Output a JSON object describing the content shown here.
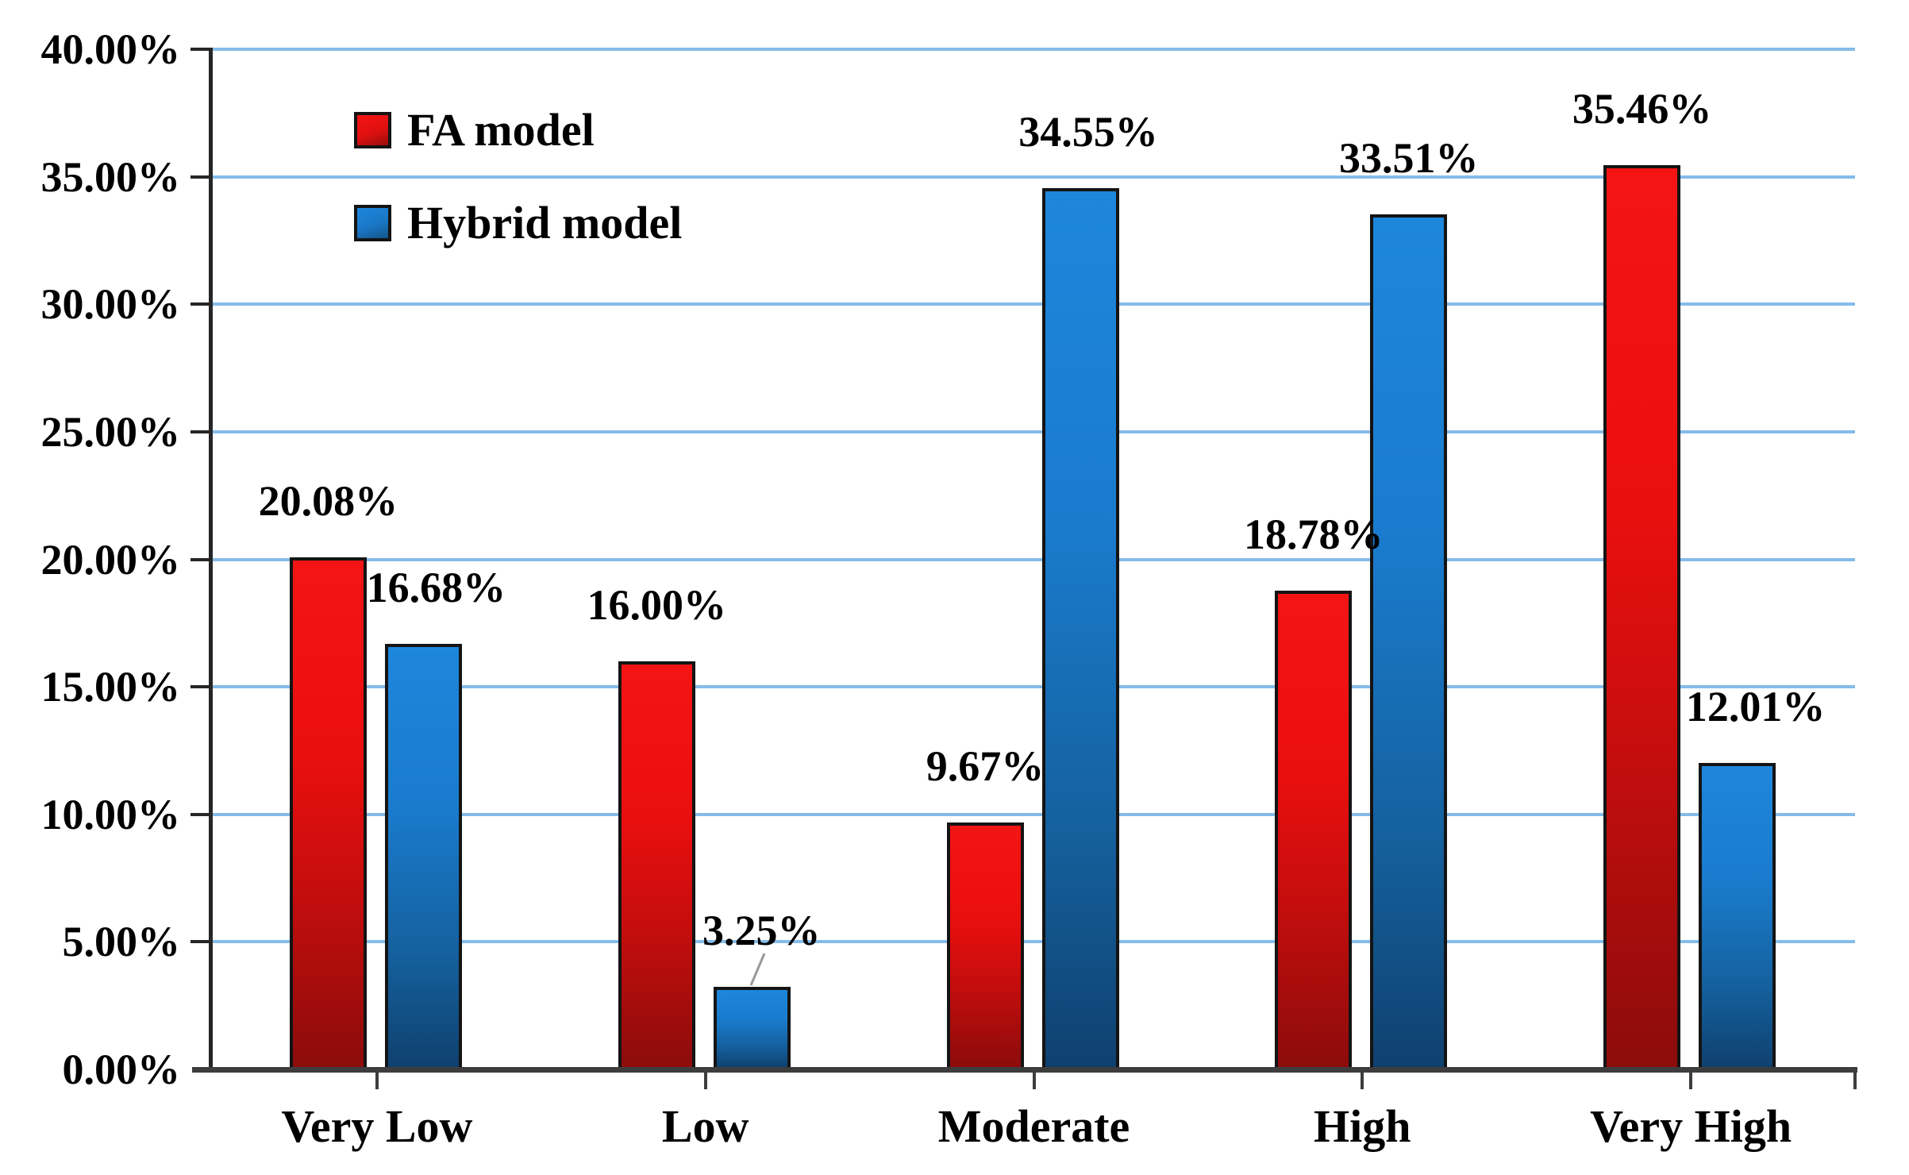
{
  "chart_data": {
    "type": "bar",
    "title": "",
    "xlabel": "",
    "ylabel": "",
    "categories": [
      "Very Low",
      "Low",
      "Moderate",
      "High",
      "Very High"
    ],
    "series": [
      {
        "name": "FA model",
        "values": [
          20.08,
          16.0,
          9.67,
          18.78,
          35.46
        ],
        "data_labels": [
          "20.08%",
          "16.00%",
          "9.67%",
          "18.78%",
          "35.46%"
        ],
        "color": "#ea0f0f"
      },
      {
        "name": "Hybrid model",
        "values": [
          16.68,
          3.25,
          34.55,
          33.51,
          12.01
        ],
        "data_labels": [
          "16.68%",
          "3.25%",
          "34.55%",
          "33.51%",
          "12.01%"
        ],
        "color": "#1a7bcd"
      }
    ],
    "ylim": [
      0,
      40
    ],
    "ytick_step": 5,
    "ytick_labels": [
      "0.00%",
      "5.00%",
      "10.00%",
      "15.00%",
      "20.00%",
      "25.00%",
      "30.00%",
      "35.00%",
      "40.00%"
    ],
    "grid": true,
    "legend_position": "top-left",
    "colors": {
      "gridline": "#85bbe9",
      "x_axis": "#3d3d3d",
      "y_axis": "#262626",
      "bar_border": "#141414",
      "leader_line": "#999999",
      "text": "#000000"
    },
    "layout_hints": {
      "label_dx": [
        [
          0,
          0,
          0,
          0,
          0
        ],
        [
          16,
          12,
          10,
          0,
          23
        ]
      ],
      "leader_annotation": {
        "series": 1,
        "category": 1
      }
    }
  }
}
